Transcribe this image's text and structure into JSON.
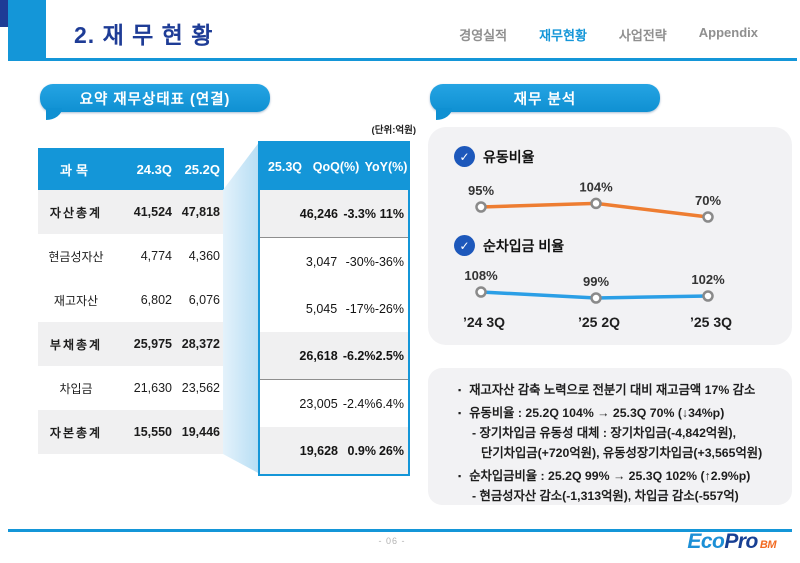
{
  "page": {
    "title": "2. 재 무 현 황",
    "page_number": "- 06 -"
  },
  "nav": {
    "items": [
      {
        "label": "경영실적",
        "active": false
      },
      {
        "label": "재무현황",
        "active": true
      },
      {
        "label": "사업전략",
        "active": false
      },
      {
        "label": "Appendix",
        "active": false
      }
    ]
  },
  "logo": {
    "eco": "Eco",
    "pro": "Pro",
    "bm": "BM"
  },
  "summary": {
    "section_title": "요약 재무상태표 (연결)",
    "unit_label": "(단위:억원)",
    "main_header": {
      "col1": "과목",
      "col2": "24.3Q",
      "col3": "25.2Q"
    },
    "highlight_header": {
      "col1": "25.3Q",
      "col2": "QoQ(%)",
      "col3": "YoY(%)"
    },
    "rows": [
      {
        "name": "자산총계",
        "v24_3q": "41,524",
        "v25_2q": "47,818",
        "v25_3q": "46,246",
        "qoq": "-3.3%",
        "yoy": "11%"
      },
      {
        "name": "현금성자산",
        "v24_3q": "4,774",
        "v25_2q": "4,360",
        "v25_3q": "3,047",
        "qoq": "-30%",
        "yoy": "-36%"
      },
      {
        "name": "재고자산",
        "v24_3q": "6,802",
        "v25_2q": "6,076",
        "v25_3q": "5,045",
        "qoq": "-17%",
        "yoy": "-26%"
      },
      {
        "name": "부채총계",
        "v24_3q": "25,975",
        "v25_2q": "28,372",
        "v25_3q": "26,618",
        "qoq": "-6.2%",
        "yoy": "2.5%"
      },
      {
        "name": "차입금",
        "v24_3q": "21,630",
        "v25_2q": "23,562",
        "v25_3q": "23,005",
        "qoq": "-2.4%",
        "yoy": "6.4%"
      },
      {
        "name": "자본총계",
        "v24_3q": "15,550",
        "v25_2q": "19,446",
        "v25_3q": "19,628",
        "qoq": "0.9%",
        "yoy": "26%"
      }
    ]
  },
  "analysis": {
    "section_title": "재무 분석",
    "notes": [
      {
        "type": "bullet",
        "text": "재고자산 감축 노력으로 전분기 대비 재고금액 17% 감소"
      },
      {
        "type": "bullet",
        "text": "유동비율 : 25.2Q  104%  →  25.3Q  70% (↓34%p)"
      },
      {
        "type": "sub",
        "text": "- 장기차입금 유동성 대체 : 장기차입금(-4,842억원),"
      },
      {
        "type": "sub2",
        "text": "단기차입금(+720억원), 유동성장기차입금(+3,565억원)"
      },
      {
        "type": "bullet",
        "text": "순차입금비율 : 25.2Q  99%  →  25.3Q  102% (↑2.9%p)"
      },
      {
        "type": "sub",
        "text": "- 현금성자산 감소(-1,313억원), 차입금 감소(-557억)"
      }
    ]
  },
  "chart_data": [
    {
      "type": "line",
      "title": "유동비율",
      "categories": [
        "’24 3Q",
        "’25 2Q",
        "’25 3Q"
      ],
      "values": [
        95,
        104,
        70
      ],
      "labels": [
        "95%",
        "104%",
        "70%"
      ],
      "unit": "%",
      "color": "#ee7d31",
      "ylim": [
        60,
        115
      ],
      "grid": false,
      "legend": "none"
    },
    {
      "type": "line",
      "title": "순차입금 비율",
      "categories": [
        "’24 3Q",
        "’25 2Q",
        "’25 3Q"
      ],
      "values": [
        108,
        99,
        102
      ],
      "labels": [
        "108%",
        "99%",
        "102%"
      ],
      "unit": "%",
      "color": "#2b9fe6",
      "ylim": [
        90,
        115
      ],
      "grid": false,
      "legend": "none"
    }
  ],
  "colors": {
    "accent_blue": "#1496d8",
    "navy": "#1e3c96",
    "check_blue": "#1d58bb",
    "orange_line": "#ee7d31",
    "blue_line": "#2b9fe6"
  }
}
